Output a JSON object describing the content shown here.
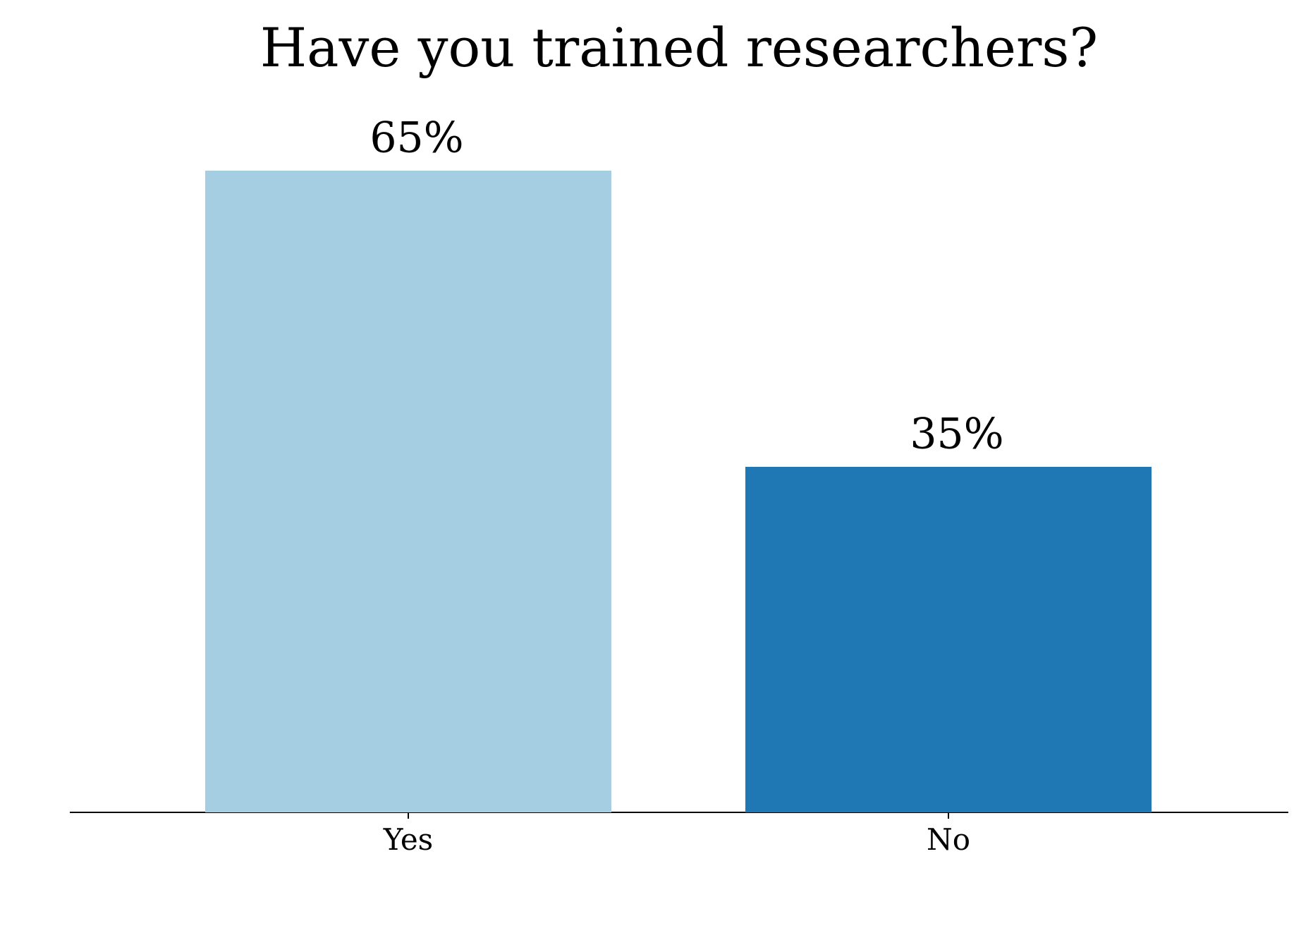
{
  "chart_data": {
    "type": "bar",
    "title": "Have you trained researchers?",
    "categories": [
      "Yes",
      "No"
    ],
    "values": [
      65,
      35
    ],
    "value_labels": [
      "65%",
      "35%"
    ],
    "colors": [
      "#a6cee3",
      "#1f78b4"
    ],
    "ylim": [
      0,
      70
    ]
  }
}
